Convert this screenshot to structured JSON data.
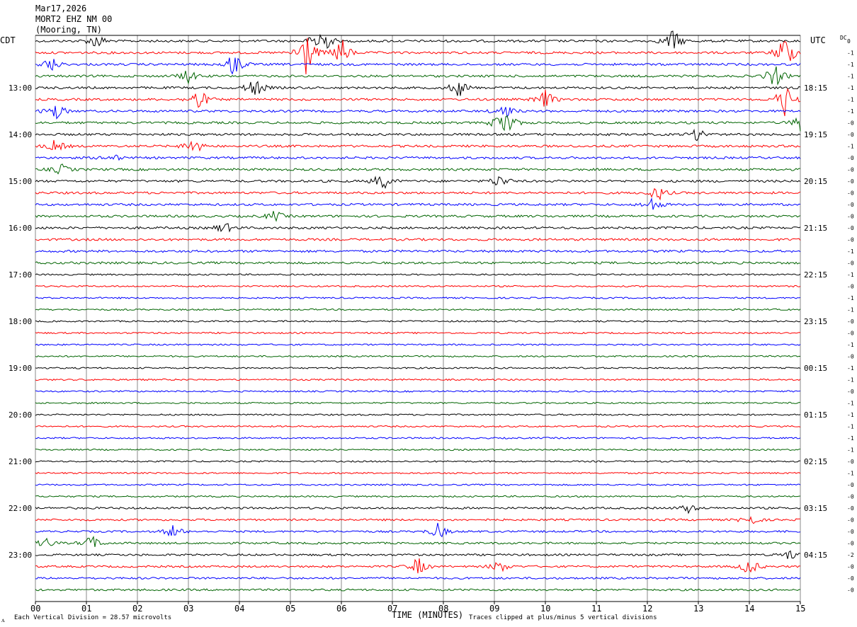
{
  "header": {
    "date": "Mar17,2026",
    "station": "MORT2 EHZ NM 00",
    "location": "(Mooring, TN)"
  },
  "left_axis_title": "CDT",
  "right_axis_title": "UTC",
  "dc_header": "DC",
  "footer": {
    "scale_note": "Each Vertical Division =   28.57 microvolts",
    "x_axis_title": "TIME (MINUTES)",
    "clip_note": "Traces clipped at plus/minus 5 vertical divisions",
    "corner_glyph": "ᴧ"
  },
  "chart_data": {
    "type": "line",
    "subtype": "helicorder",
    "xlabel": "TIME (MINUTES)",
    "x_ticks": [
      "00",
      "01",
      "02",
      "03",
      "04",
      "05",
      "06",
      "07",
      "08",
      "09",
      "10",
      "11",
      "12",
      "13",
      "14",
      "15"
    ],
    "x_range": [
      0,
      15
    ],
    "grid": true,
    "rows_per_hour": 4,
    "row_count": 48,
    "trace_colors": [
      "#000000",
      "#ff0000",
      "#0000ff",
      "#006400"
    ],
    "left_hour_labels": [
      "13:00",
      "14:00",
      "15:00",
      "16:00",
      "17:00",
      "18:00",
      "19:00",
      "20:00",
      "21:00",
      "22:00",
      "23:00"
    ],
    "right_hour_labels": [
      "18:15",
      "19:15",
      "20:15",
      "21:15",
      "22:15",
      "23:15",
      "00:15",
      "01:15",
      "02:15",
      "03:15",
      "04:15"
    ],
    "dc_offsets": [
      "0",
      "-1",
      "-1",
      "-1",
      "-1",
      "-1",
      "-1",
      "-0",
      "-0",
      "-1",
      "-0",
      "-0",
      "-0",
      "-0",
      "-0",
      "-0",
      "-0",
      "-0",
      "-1",
      "-0",
      "-1",
      "-0",
      "-1",
      "-1",
      "-0",
      "-0",
      "-1",
      "-0",
      "-1",
      "-1",
      "-0",
      "-1",
      "-1",
      "-1",
      "-1",
      "-1",
      "-0",
      "-1",
      "-0",
      "-0",
      "-0",
      "-0",
      "-0",
      "-0",
      "-2",
      "-0",
      "-0",
      "-0"
    ],
    "events": [
      {
        "row": 0,
        "minute": 1.2,
        "amp": 12
      },
      {
        "row": 0,
        "minute": 5.6,
        "amp": 30
      },
      {
        "row": 0,
        "minute": 12.5,
        "amp": 18
      },
      {
        "row": 1,
        "minute": 5.3,
        "amp": 40
      },
      {
        "row": 1,
        "minute": 6.0,
        "amp": 22
      },
      {
        "row": 1,
        "minute": 14.7,
        "amp": 30
      },
      {
        "row": 2,
        "minute": 0.3,
        "amp": 12
      },
      {
        "row": 2,
        "minute": 3.9,
        "amp": 20
      },
      {
        "row": 3,
        "minute": 14.5,
        "amp": 18
      },
      {
        "row": 3,
        "minute": 3.0,
        "amp": 10
      },
      {
        "row": 4,
        "minute": 8.3,
        "amp": 14
      },
      {
        "row": 4,
        "minute": 4.3,
        "amp": 16
      },
      {
        "row": 5,
        "minute": 3.2,
        "amp": 18
      },
      {
        "row": 5,
        "minute": 14.7,
        "amp": 26
      },
      {
        "row": 5,
        "minute": 10.0,
        "amp": 14
      },
      {
        "row": 6,
        "minute": 0.4,
        "amp": 14
      },
      {
        "row": 6,
        "minute": 9.2,
        "amp": 12
      },
      {
        "row": 7,
        "minute": 9.2,
        "amp": 30
      },
      {
        "row": 7,
        "minute": 15.0,
        "amp": 12
      },
      {
        "row": 8,
        "minute": 13.0,
        "amp": 10
      },
      {
        "row": 9,
        "minute": 3.1,
        "amp": 14
      },
      {
        "row": 9,
        "minute": 0.4,
        "amp": 10
      },
      {
        "row": 10,
        "minute": 1.5,
        "amp": 6
      },
      {
        "row": 11,
        "minute": 0.5,
        "amp": 8
      },
      {
        "row": 12,
        "minute": 6.8,
        "amp": 14
      },
      {
        "row": 12,
        "minute": 9.1,
        "amp": 10
      },
      {
        "row": 13,
        "minute": 12.2,
        "amp": 12
      },
      {
        "row": 14,
        "minute": 12.1,
        "amp": 10
      },
      {
        "row": 15,
        "minute": 4.7,
        "amp": 8
      },
      {
        "row": 16,
        "minute": 3.7,
        "amp": 9
      },
      {
        "row": 42,
        "minute": 2.7,
        "amp": 10
      },
      {
        "row": 42,
        "minute": 7.9,
        "amp": 12
      },
      {
        "row": 43,
        "minute": 0.2,
        "amp": 8
      },
      {
        "row": 43,
        "minute": 1.1,
        "amp": 12
      },
      {
        "row": 44,
        "minute": 14.8,
        "amp": 8
      },
      {
        "row": 45,
        "minute": 7.5,
        "amp": 14
      },
      {
        "row": 45,
        "minute": 9.1,
        "amp": 10
      },
      {
        "row": 45,
        "minute": 14.0,
        "amp": 14
      },
      {
        "row": 41,
        "minute": 14.0,
        "amp": 10
      },
      {
        "row": 40,
        "minute": 12.8,
        "amp": 7
      }
    ]
  }
}
